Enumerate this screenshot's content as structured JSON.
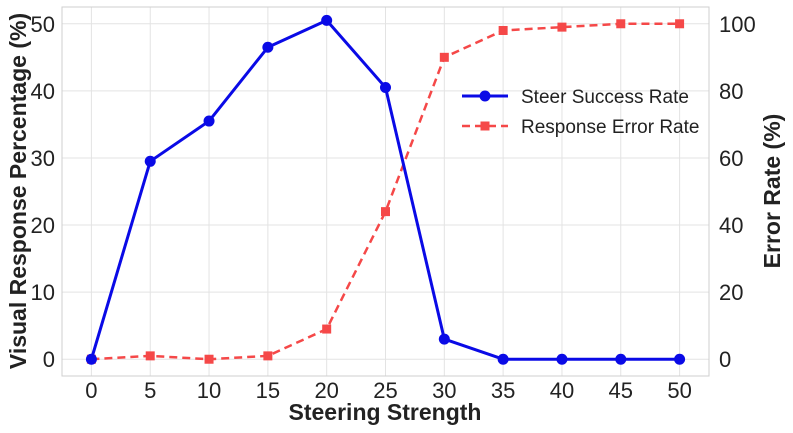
{
  "chart_data": {
    "type": "line",
    "xlabel": "Steering Strength",
    "ylabel_left": "Visual Response Percentage (%)",
    "ylabel_right": "Error Rate (%)",
    "x": [
      0,
      5,
      10,
      15,
      20,
      25,
      30,
      35,
      40,
      45,
      50
    ],
    "xticks": [
      "0",
      "5",
      "10",
      "15",
      "20",
      "25",
      "30",
      "35",
      "40",
      "45",
      "50"
    ],
    "xlim": [
      -2.5,
      52.5
    ],
    "ylim_left": [
      -2.5,
      52.5
    ],
    "yticks_left": [
      "0",
      "10",
      "20",
      "30",
      "40",
      "50"
    ],
    "ylim_right": [
      -5,
      105
    ],
    "yticks_right": [
      "0",
      "20",
      "40",
      "60",
      "80",
      "100"
    ],
    "grid": true,
    "legend_position": "center-right",
    "series": [
      {
        "name": "Steer Success Rate",
        "axis": "left",
        "color": "#0a0ae6",
        "marker": "circle",
        "linestyle": "solid",
        "values": [
          0,
          29.5,
          35.5,
          46.5,
          50.5,
          40.5,
          3,
          0,
          0,
          0,
          0
        ]
      },
      {
        "name": "Response Error Rate",
        "axis": "right",
        "color": "#f54848",
        "marker": "square",
        "linestyle": "dashed",
        "values": [
          0,
          1,
          0,
          1,
          9,
          44,
          90,
          98,
          99,
          100,
          100
        ]
      }
    ]
  }
}
